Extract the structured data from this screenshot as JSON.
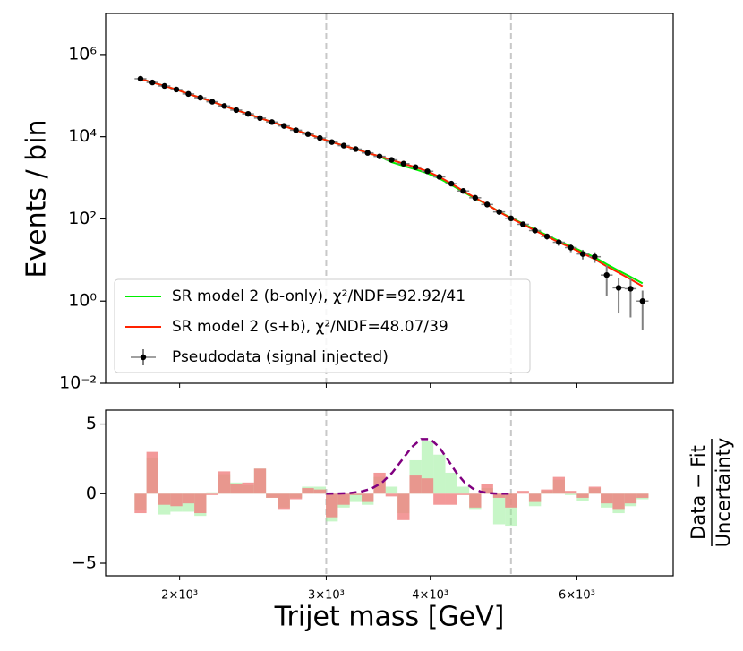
{
  "chart_data": [
    {
      "type": "line",
      "y_label": "Events / bin",
      "log_x": true,
      "log_y": true,
      "xlim": [
        1630,
        7830
      ],
      "ylim": [
        0.01,
        10000000
      ],
      "xticks": [
        2000,
        3000,
        4000,
        6000
      ],
      "yticks": [
        {
          "value": 0.01,
          "label": "10⁻²"
        },
        {
          "value": 1,
          "label": "10⁰"
        },
        {
          "value": 100,
          "label": "10²"
        },
        {
          "value": 10000,
          "label": "10⁴"
        },
        {
          "value": 1000000,
          "label": "10⁶"
        }
      ],
      "vlines": [
        3000,
        5000
      ],
      "legend": "lower left",
      "x": [
        1795,
        1855,
        1918,
        1982,
        2049,
        2118,
        2189,
        2263,
        2339,
        2417,
        2498,
        2582,
        2669,
        2759,
        2852,
        2948,
        3047,
        3149,
        3255,
        3364,
        3477,
        3594,
        3715,
        3840,
        3969,
        4102,
        4240,
        4382,
        4529,
        4681,
        4839,
        5001,
        5169,
        5343,
        5523,
        5708,
        5900,
        6098,
        6303,
        6515,
        6734,
        6960,
        7194
      ],
      "series": [
        {
          "name": "SR model 2 (b-only), χ²/NDF=92.92/41",
          "color": "#00ee00",
          "kind": "line",
          "values": [
            257000,
            209000,
            172000,
            141000,
            110000,
            89000,
            71000,
            56000,
            44500,
            36000,
            28400,
            22700,
            18300,
            14400,
            11600,
            9300,
            7400,
            6080,
            5000,
            4050,
            3320,
            2400,
            1950,
            1600,
            1290,
            960,
            670,
            455,
            315,
            224,
            150,
            106,
            77,
            55,
            40,
            29,
            21.5,
            15.8,
            11.6,
            7.9,
            5.5,
            3.9,
            2.7
          ]
        },
        {
          "name": "SR model 2 (s+b), χ²/NDF=48.07/39",
          "color": "#ff2200",
          "kind": "line",
          "values": [
            257000,
            209000,
            172000,
            141000,
            110000,
            89000,
            71000,
            56000,
            44500,
            36000,
            28400,
            22700,
            18300,
            14400,
            11600,
            9300,
            7400,
            6080,
            5000,
            4050,
            3320,
            2730,
            2210,
            1815,
            1440,
            1055,
            720,
            479,
            327,
            224,
            148,
            103,
            74,
            52,
            37.5,
            27,
            20,
            14.5,
            10.5,
            7,
            4.9,
            3.4,
            2.3
          ]
        },
        {
          "name": "Pseudodata (signal injected)",
          "color": "#000000",
          "kind": "errorbar",
          "values": [
            257000,
            209000,
            172000,
            141000,
            110000,
            89000,
            71000,
            56000,
            44500,
            36000,
            28400,
            22700,
            18300,
            14400,
            11600,
            9300,
            7400,
            6080,
            5000,
            4050,
            3320,
            2730,
            2210,
            1815,
            1440,
            1055,
            720,
            479,
            327,
            224,
            148,
            103,
            74,
            52,
            37.5,
            27,
            20,
            14,
            12,
            4.3,
            2.1,
            2,
            1
          ],
          "errors": [
            507,
            457,
            415,
            375,
            332,
            298,
            266,
            237,
            211,
            190,
            169,
            151,
            135,
            120,
            108,
            96,
            86,
            78,
            71,
            64,
            58,
            52,
            47,
            43,
            38,
            32,
            27,
            22,
            18,
            15,
            12,
            10,
            8.6,
            7.2,
            6.1,
            5.2,
            4.5,
            3.7,
            3.5,
            3.0,
            1.6,
            1.6,
            0.8
          ]
        }
      ]
    },
    {
      "type": "step",
      "x_label": "Trijet mass [GeV]",
      "y_label": {
        "numerator": "Data − Fit",
        "denominator": "Uncertainty"
      },
      "log_x": true,
      "xlim": [
        1630,
        7830
      ],
      "ylim": [
        -5.9,
        6.0
      ],
      "xticks": [
        {
          "value": 2000,
          "label": "2×10³"
        },
        {
          "value": 3000,
          "label": "3×10³"
        },
        {
          "value": 4000,
          "label": "4×10³"
        },
        {
          "value": 6000,
          "label": "6×10³"
        }
      ],
      "yticks": [
        {
          "value": -5,
          "label": "−5"
        },
        0,
        5
      ],
      "vlines": [
        3000,
        5000
      ],
      "x": [
        1795,
        1855,
        1918,
        1982,
        2049,
        2118,
        2189,
        2263,
        2339,
        2417,
        2498,
        2582,
        2669,
        2759,
        2852,
        2948,
        3047,
        3149,
        3255,
        3364,
        3477,
        3594,
        3715,
        3840,
        3969,
        4102,
        4240,
        4382,
        4529,
        4681,
        4839,
        5001,
        5169,
        5343,
        5523,
        5708,
        5900,
        6098,
        6303,
        6515,
        6734,
        6960,
        7194
      ],
      "series": [
        {
          "color": "#90ee90",
          "values": [
            -1.2,
            2.6,
            -1.5,
            -1.3,
            -1.3,
            -1.6,
            0.1,
            1.4,
            0.8,
            0.6,
            1.8,
            -0.3,
            -1.0,
            -0.3,
            0.5,
            0.5,
            -2.0,
            -1.0,
            -0.6,
            -0.8,
            1.2,
            0.5,
            -1.4,
            2.4,
            3.8,
            2.8,
            1.5,
            0.5,
            -1.1,
            0.4,
            -2.2,
            -2.3,
            0.0,
            -0.9,
            0.2,
            1.0,
            -0.1,
            -0.5,
            0.4,
            -1.0,
            -1.4,
            -0.9,
            -0.4
          ]
        },
        {
          "color": "#f08080",
          "values": [
            -1.4,
            3.0,
            -0.8,
            -0.9,
            -0.7,
            -1.4,
            -0.1,
            1.6,
            0.7,
            0.8,
            1.8,
            -0.3,
            -1.1,
            -0.4,
            0.4,
            0.3,
            -1.7,
            -0.8,
            -0.1,
            -0.6,
            1.5,
            -0.2,
            -1.9,
            1.3,
            1.1,
            -0.8,
            -0.8,
            -0.1,
            -1.0,
            0.7,
            -0.3,
            -1.0,
            0.2,
            -0.6,
            0.3,
            1.2,
            0.2,
            -0.3,
            0.5,
            -0.7,
            -1.1,
            -0.7,
            -0.3
          ]
        }
      ],
      "signal": {
        "color": "#800080",
        "x": [
          3000,
          3100,
          3200,
          3300,
          3400,
          3500,
          3600,
          3700,
          3800,
          3900,
          4000,
          4100,
          4200,
          4300,
          4400,
          4500,
          4600,
          4700,
          4800,
          4900,
          5000
        ],
        "values": [
          0,
          0.01,
          0.04,
          0.14,
          0.36,
          0.79,
          1.5,
          2.43,
          3.34,
          3.92,
          3.92,
          3.34,
          2.43,
          1.5,
          0.79,
          0.36,
          0.14,
          0.04,
          0.01,
          0,
          0
        ]
      }
    }
  ]
}
